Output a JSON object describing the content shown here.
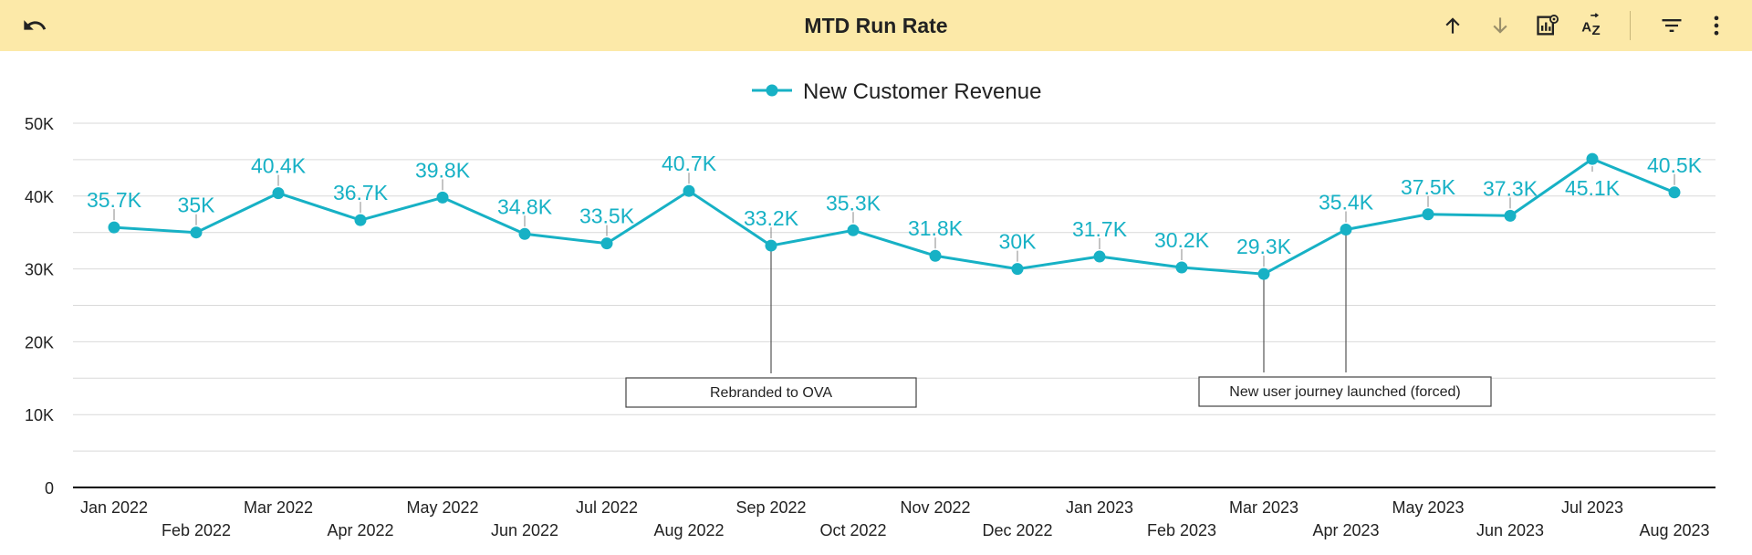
{
  "toolbar": {
    "title": "MTD Run Rate",
    "icons": [
      "undo-icon",
      "sort-ascending-icon",
      "sort-descending-icon",
      "chart-settings-icon",
      "sort-az-icon",
      "filter-icon",
      "more-vert-icon"
    ]
  },
  "colors": {
    "series": "#17b1c5",
    "toolbar_bg": "#fce9a8",
    "grid": "#d9d9d9",
    "axis": "#000000"
  },
  "chart_data": {
    "type": "line",
    "title": "",
    "xlabel": "",
    "ylabel": "",
    "ylim": [
      0,
      50000
    ],
    "yticks": [
      0,
      10000,
      20000,
      30000,
      40000,
      50000
    ],
    "ytick_labels": [
      "0",
      "10K",
      "20K",
      "30K",
      "40K",
      "50K"
    ],
    "categories": [
      "Jan 2022",
      "Feb 2022",
      "Mar 2022",
      "Apr 2022",
      "May 2022",
      "Jun 2022",
      "Jul 2022",
      "Aug 2022",
      "Sep 2022",
      "Oct 2022",
      "Nov 2022",
      "Dec 2022",
      "Jan 2023",
      "Feb 2023",
      "Mar 2023",
      "Apr 2023",
      "May 2023",
      "Jun 2023",
      "Jul 2023",
      "Aug 2023"
    ],
    "legend": {
      "position": "top-center",
      "entries": [
        "New Customer Revenue"
      ]
    },
    "series": [
      {
        "name": "New Customer Revenue",
        "values": [
          35700,
          35000,
          40400,
          36700,
          39800,
          34800,
          33500,
          40700,
          33200,
          35300,
          31800,
          30000,
          31700,
          30200,
          29300,
          35400,
          37500,
          37300,
          45100,
          40500
        ],
        "labels": [
          "35.7K",
          "35K",
          "40.4K",
          "36.7K",
          "39.8K",
          "34.8K",
          "33.5K",
          "40.7K",
          "33.2K",
          "35.3K",
          "31.8K",
          "30K",
          "31.7K",
          "30.2K",
          "29.3K",
          "35.4K",
          "37.5K",
          "37.3K",
          "45.1K",
          "40.5K"
        ]
      }
    ],
    "annotations": [
      {
        "text": "Rebranded to OVA",
        "points": [
          8
        ]
      },
      {
        "text": "New user journey launched (forced)",
        "points": [
          14,
          15
        ]
      }
    ]
  }
}
